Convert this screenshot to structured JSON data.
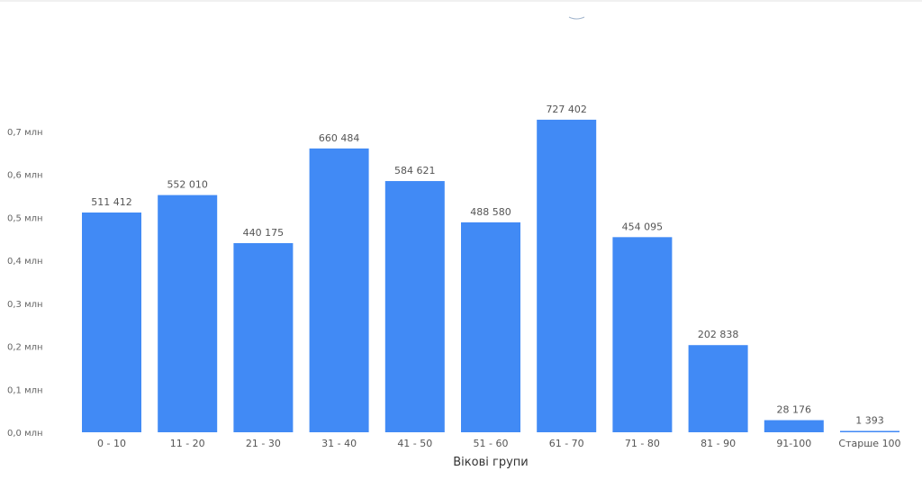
{
  "chart_data": {
    "type": "bar",
    "title": "",
    "xlabel": "Вікові групи",
    "ylabel": "",
    "categories": [
      "0 - 10",
      "11 - 20",
      "21 - 30",
      "31 - 40",
      "41 - 50",
      "51 - 60",
      "61 - 70",
      "71 - 80",
      "81 - 90",
      "91-100",
      "Старше 100"
    ],
    "values": [
      511412,
      552010,
      440175,
      660484,
      584621,
      488580,
      727402,
      454095,
      202838,
      28176,
      1393
    ],
    "value_labels": [
      "511 412",
      "552 010",
      "440 175",
      "660 484",
      "584 621",
      "488 580",
      "727 402",
      "454 095",
      "202 838",
      "28 176",
      "1 393"
    ],
    "yticks": [
      0,
      100000,
      200000,
      300000,
      400000,
      500000,
      600000,
      700000
    ],
    "ytick_labels": [
      "0,0 млн",
      "0,1 млн",
      "0,2 млн",
      "0,3 млн",
      "0,4 млн",
      "0,5 млн",
      "0,6 млн",
      "0,7 млн"
    ],
    "ylim": [
      0,
      700000
    ],
    "grid": false,
    "bar_color": "#418AF5"
  }
}
